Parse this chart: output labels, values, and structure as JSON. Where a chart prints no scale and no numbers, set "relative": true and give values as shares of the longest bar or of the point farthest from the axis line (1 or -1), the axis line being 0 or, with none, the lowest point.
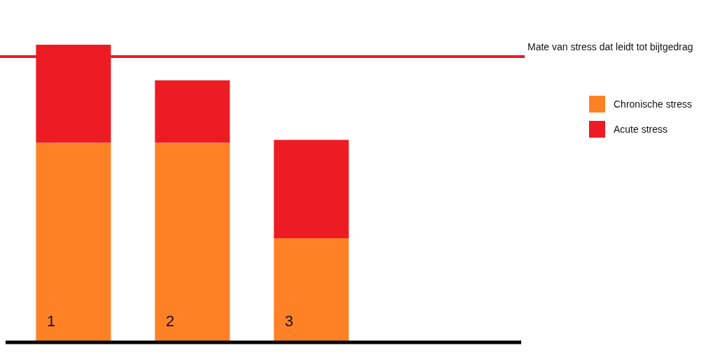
{
  "chart_data": {
    "type": "bar",
    "stacked": true,
    "relative": true,
    "categories": [
      "1",
      "2",
      "3"
    ],
    "series": [
      {
        "name": "Chronische stress",
        "color": "#fe8126",
        "values": [
          0.67,
          0.67,
          0.35
        ]
      },
      {
        "name": "Acute stress",
        "color": "#ed1c24",
        "values": [
          0.33,
          0.21,
          0.33
        ]
      }
    ],
    "ref_lines": [
      {
        "axis": "y",
        "value": 0.96,
        "label": "Mate van stress dat leidt tot bijtgedrag",
        "color": "#ed1c24"
      }
    ],
    "legend": "right"
  }
}
